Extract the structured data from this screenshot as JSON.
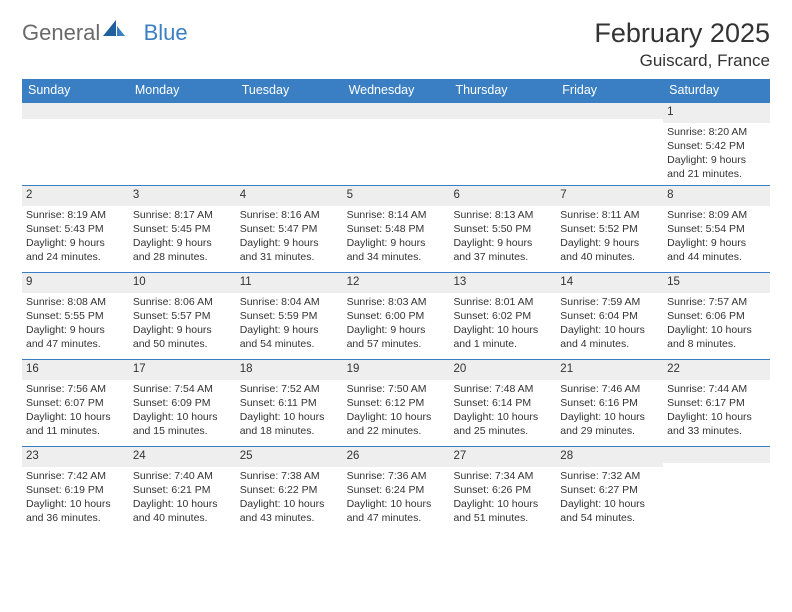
{
  "brand": {
    "word1": "General",
    "word2": "Blue"
  },
  "title": "February 2025",
  "location": "Guiscard, France",
  "colors": {
    "header_bg": "#3a7fc4",
    "header_text": "#ffffff",
    "rule": "#3a7fc4",
    "daynum_bg": "#eeeeee",
    "body_text": "#333333",
    "logo_gray": "#6a6a6a",
    "logo_blue": "#3a7fc4",
    "page_bg": "#ffffff"
  },
  "typography": {
    "month_title_pt": 27,
    "location_pt": 17,
    "dayhdr_pt": 12.5,
    "daynum_pt": 11.5,
    "cell_pt": 10.5,
    "logo_pt": 22
  },
  "day_headers": [
    "Sunday",
    "Monday",
    "Tuesday",
    "Wednesday",
    "Thursday",
    "Friday",
    "Saturday"
  ],
  "weeks": [
    [
      {
        "n": "",
        "sr": "",
        "ss": "",
        "dl": ""
      },
      {
        "n": "",
        "sr": "",
        "ss": "",
        "dl": ""
      },
      {
        "n": "",
        "sr": "",
        "ss": "",
        "dl": ""
      },
      {
        "n": "",
        "sr": "",
        "ss": "",
        "dl": ""
      },
      {
        "n": "",
        "sr": "",
        "ss": "",
        "dl": ""
      },
      {
        "n": "",
        "sr": "",
        "ss": "",
        "dl": ""
      },
      {
        "n": "1",
        "sr": "Sunrise: 8:20 AM",
        "ss": "Sunset: 5:42 PM",
        "dl": "Daylight: 9 hours and 21 minutes."
      }
    ],
    [
      {
        "n": "2",
        "sr": "Sunrise: 8:19 AM",
        "ss": "Sunset: 5:43 PM",
        "dl": "Daylight: 9 hours and 24 minutes."
      },
      {
        "n": "3",
        "sr": "Sunrise: 8:17 AM",
        "ss": "Sunset: 5:45 PM",
        "dl": "Daylight: 9 hours and 28 minutes."
      },
      {
        "n": "4",
        "sr": "Sunrise: 8:16 AM",
        "ss": "Sunset: 5:47 PM",
        "dl": "Daylight: 9 hours and 31 minutes."
      },
      {
        "n": "5",
        "sr": "Sunrise: 8:14 AM",
        "ss": "Sunset: 5:48 PM",
        "dl": "Daylight: 9 hours and 34 minutes."
      },
      {
        "n": "6",
        "sr": "Sunrise: 8:13 AM",
        "ss": "Sunset: 5:50 PM",
        "dl": "Daylight: 9 hours and 37 minutes."
      },
      {
        "n": "7",
        "sr": "Sunrise: 8:11 AM",
        "ss": "Sunset: 5:52 PM",
        "dl": "Daylight: 9 hours and 40 minutes."
      },
      {
        "n": "8",
        "sr": "Sunrise: 8:09 AM",
        "ss": "Sunset: 5:54 PM",
        "dl": "Daylight: 9 hours and 44 minutes."
      }
    ],
    [
      {
        "n": "9",
        "sr": "Sunrise: 8:08 AM",
        "ss": "Sunset: 5:55 PM",
        "dl": "Daylight: 9 hours and 47 minutes."
      },
      {
        "n": "10",
        "sr": "Sunrise: 8:06 AM",
        "ss": "Sunset: 5:57 PM",
        "dl": "Daylight: 9 hours and 50 minutes."
      },
      {
        "n": "11",
        "sr": "Sunrise: 8:04 AM",
        "ss": "Sunset: 5:59 PM",
        "dl": "Daylight: 9 hours and 54 minutes."
      },
      {
        "n": "12",
        "sr": "Sunrise: 8:03 AM",
        "ss": "Sunset: 6:00 PM",
        "dl": "Daylight: 9 hours and 57 minutes."
      },
      {
        "n": "13",
        "sr": "Sunrise: 8:01 AM",
        "ss": "Sunset: 6:02 PM",
        "dl": "Daylight: 10 hours and 1 minute."
      },
      {
        "n": "14",
        "sr": "Sunrise: 7:59 AM",
        "ss": "Sunset: 6:04 PM",
        "dl": "Daylight: 10 hours and 4 minutes."
      },
      {
        "n": "15",
        "sr": "Sunrise: 7:57 AM",
        "ss": "Sunset: 6:06 PM",
        "dl": "Daylight: 10 hours and 8 minutes."
      }
    ],
    [
      {
        "n": "16",
        "sr": "Sunrise: 7:56 AM",
        "ss": "Sunset: 6:07 PM",
        "dl": "Daylight: 10 hours and 11 minutes."
      },
      {
        "n": "17",
        "sr": "Sunrise: 7:54 AM",
        "ss": "Sunset: 6:09 PM",
        "dl": "Daylight: 10 hours and 15 minutes."
      },
      {
        "n": "18",
        "sr": "Sunrise: 7:52 AM",
        "ss": "Sunset: 6:11 PM",
        "dl": "Daylight: 10 hours and 18 minutes."
      },
      {
        "n": "19",
        "sr": "Sunrise: 7:50 AM",
        "ss": "Sunset: 6:12 PM",
        "dl": "Daylight: 10 hours and 22 minutes."
      },
      {
        "n": "20",
        "sr": "Sunrise: 7:48 AM",
        "ss": "Sunset: 6:14 PM",
        "dl": "Daylight: 10 hours and 25 minutes."
      },
      {
        "n": "21",
        "sr": "Sunrise: 7:46 AM",
        "ss": "Sunset: 6:16 PM",
        "dl": "Daylight: 10 hours and 29 minutes."
      },
      {
        "n": "22",
        "sr": "Sunrise: 7:44 AM",
        "ss": "Sunset: 6:17 PM",
        "dl": "Daylight: 10 hours and 33 minutes."
      }
    ],
    [
      {
        "n": "23",
        "sr": "Sunrise: 7:42 AM",
        "ss": "Sunset: 6:19 PM",
        "dl": "Daylight: 10 hours and 36 minutes."
      },
      {
        "n": "24",
        "sr": "Sunrise: 7:40 AM",
        "ss": "Sunset: 6:21 PM",
        "dl": "Daylight: 10 hours and 40 minutes."
      },
      {
        "n": "25",
        "sr": "Sunrise: 7:38 AM",
        "ss": "Sunset: 6:22 PM",
        "dl": "Daylight: 10 hours and 43 minutes."
      },
      {
        "n": "26",
        "sr": "Sunrise: 7:36 AM",
        "ss": "Sunset: 6:24 PM",
        "dl": "Daylight: 10 hours and 47 minutes."
      },
      {
        "n": "27",
        "sr": "Sunrise: 7:34 AM",
        "ss": "Sunset: 6:26 PM",
        "dl": "Daylight: 10 hours and 51 minutes."
      },
      {
        "n": "28",
        "sr": "Sunrise: 7:32 AM",
        "ss": "Sunset: 6:27 PM",
        "dl": "Daylight: 10 hours and 54 minutes."
      },
      {
        "n": "",
        "sr": "",
        "ss": "",
        "dl": ""
      }
    ]
  ]
}
